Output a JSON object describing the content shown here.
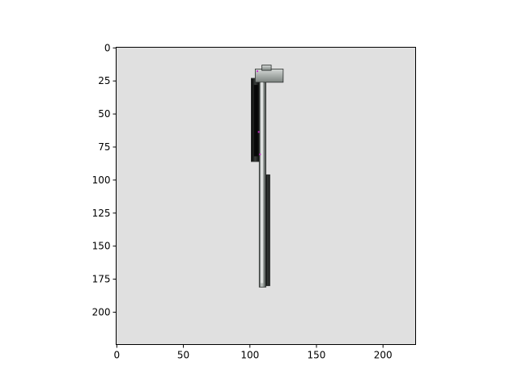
{
  "chart_data": {
    "type": "image",
    "title": "",
    "xlabel": "",
    "ylabel": "",
    "xlim": [
      -0.5,
      224.5
    ],
    "ylim": [
      224.5,
      -0.5
    ],
    "x_ticks": [
      0,
      50,
      100,
      150,
      200
    ],
    "y_ticks": [
      0,
      25,
      50,
      75,
      100,
      125,
      150,
      175,
      200
    ],
    "background_color": "#e0e0e0",
    "object": {
      "description_colors": [
        "#9aa09c",
        "#111111",
        "#5c6360",
        "#e8e8e8",
        "#cc33cc"
      ],
      "pipe_segments": [
        {
          "x0": 107,
          "x1": 112,
          "y0": 22,
          "y1": 181
        },
        {
          "x0": 112,
          "x1": 115,
          "y0": 96,
          "y1": 180
        },
        {
          "x0": 101,
          "x1": 107,
          "y0": 23,
          "y1": 86
        },
        {
          "x0": 104,
          "x1": 125,
          "y0": 16,
          "y1": 26
        },
        {
          "x0": 109,
          "x1": 116,
          "y0": 13,
          "y1": 17
        }
      ]
    }
  }
}
